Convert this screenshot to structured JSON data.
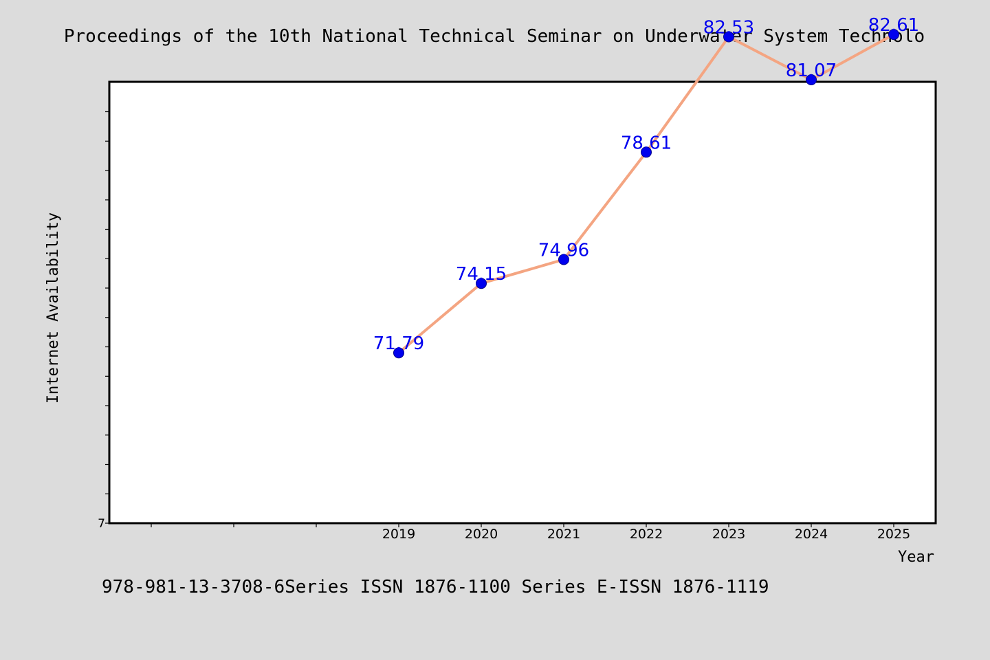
{
  "chart_data": {
    "type": "line",
    "title": "Proceedings of the 10th National Technical Seminar on Underwater System Technolo",
    "footer": "978-981-13-3708-6Series ISSN 1876-1100 Series E-ISSN 1876-1119",
    "xlabel": "Year",
    "ylabel": "Internet Availability",
    "categories": [
      "2019",
      "2020",
      "2021",
      "2022",
      "2023",
      "2024",
      "2025"
    ],
    "values": [
      71.79,
      74.15,
      74.96,
      78.61,
      82.53,
      81.07,
      82.61
    ],
    "data_labels": [
      "71.79",
      "74.15",
      "74.96",
      "78.61",
      "82.53",
      "81.07",
      "82.61"
    ],
    "y_tick_label": "7",
    "ylim": [
      66,
      81.0
    ],
    "grid": false,
    "colors": {
      "line": "#f4a582",
      "marker": "#0000ee",
      "marker_edge": "#00008b",
      "data_label": "#0000ee",
      "background": "#dcdcdc",
      "plot_bg": "#ffffff"
    }
  }
}
